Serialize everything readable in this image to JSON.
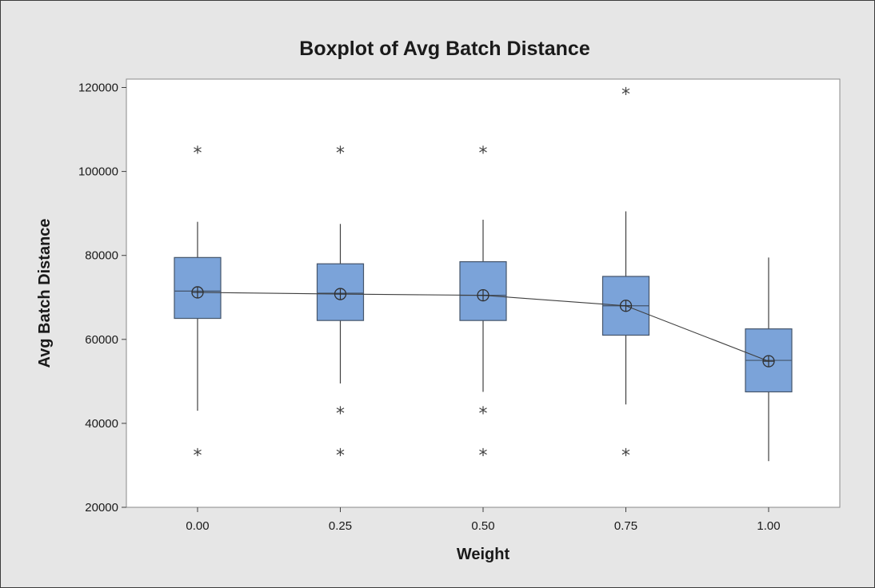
{
  "chart_data": {
    "type": "boxplot",
    "title": "Boxplot of Avg Batch Distance",
    "xlabel": "Weight",
    "ylabel": "Avg Batch Distance",
    "ylim": [
      20000,
      122000
    ],
    "yticks": [
      20000,
      40000,
      60000,
      80000,
      100000,
      120000
    ],
    "ytick_labels": [
      "20000",
      "40000",
      "60000",
      "80000",
      "100000",
      "120000"
    ],
    "categories": [
      "0.00",
      "0.25",
      "0.50",
      "0.75",
      "1.00"
    ],
    "boxes": [
      {
        "category": "0.00",
        "whisker_low": 43000,
        "q1": 65000,
        "median": 71500,
        "q3": 79500,
        "whisker_high": 88000,
        "mean": 71200,
        "outliers": [
          104500,
          32500
        ]
      },
      {
        "category": "0.25",
        "whisker_low": 49500,
        "q1": 64500,
        "median": 71000,
        "q3": 78000,
        "whisker_high": 87500,
        "mean": 70800,
        "outliers": [
          104500,
          42500,
          32500
        ]
      },
      {
        "category": "0.50",
        "whisker_low": 47500,
        "q1": 64500,
        "median": 70500,
        "q3": 78500,
        "whisker_high": 88500,
        "mean": 70500,
        "outliers": [
          104500,
          42500,
          32500
        ]
      },
      {
        "category": "0.75",
        "whisker_low": 44500,
        "q1": 61000,
        "median": 68000,
        "q3": 75000,
        "whisker_high": 90500,
        "mean": 68000,
        "outliers": [
          118500,
          32500
        ]
      },
      {
        "category": "1.00",
        "whisker_low": 31000,
        "q1": 47500,
        "median": 55000,
        "q3": 62500,
        "whisker_high": 79500,
        "mean": 54800,
        "outliers": []
      }
    ],
    "mean_line": true,
    "grid": false,
    "colors": {
      "box_fill": "#7ba3d9",
      "box_stroke": "#44546a",
      "line": "#3f3f3f",
      "frame_bg": "#e6e6e6",
      "plot_bg": "#ffffff"
    }
  }
}
